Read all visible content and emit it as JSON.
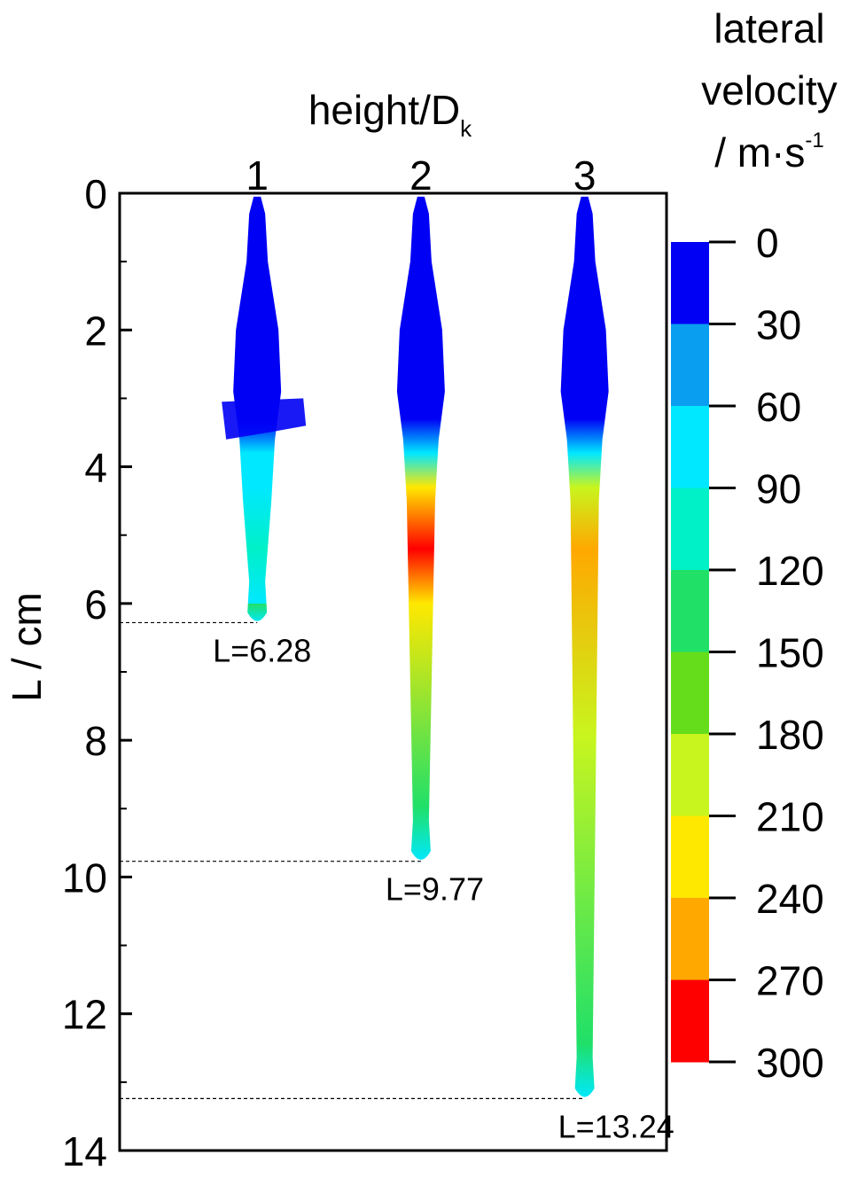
{
  "chart_data": {
    "type": "jet-contour",
    "x_label": "height/D",
    "x_label_subscript": "k",
    "y_label": "L / cm",
    "xlim": [
      0.16,
      3.5
    ],
    "xticks": [
      1,
      2,
      3
    ],
    "ylim": [
      0,
      14
    ],
    "yticks": [
      0,
      2,
      4,
      6,
      8,
      10,
      12,
      14
    ],
    "yminorticks": [
      1,
      3,
      5,
      7,
      9,
      11,
      13
    ],
    "jets": [
      {
        "x": 1,
        "length": 6.28,
        "label": "L=6.28"
      },
      {
        "x": 2,
        "length": 9.77,
        "label": "L=9.77"
      },
      {
        "x": 3,
        "length": 13.24,
        "label": "L=13.24"
      }
    ],
    "colorbar": {
      "label": [
        "lateral",
        "velocity",
        "/ m·s"
      ],
      "label_superscript": "-1",
      "clim": [
        0,
        300
      ],
      "ticks": [
        0,
        30,
        60,
        90,
        120,
        150,
        180,
        210,
        240,
        270,
        300
      ],
      "colors": [
        "#0000f5",
        "#0a9ef0",
        "#00e8ff",
        "#00f0c8",
        "#20e068",
        "#66dd1a",
        "#c8f51e",
        "#ffe800",
        "#ffa800",
        "#ff0000"
      ]
    }
  }
}
